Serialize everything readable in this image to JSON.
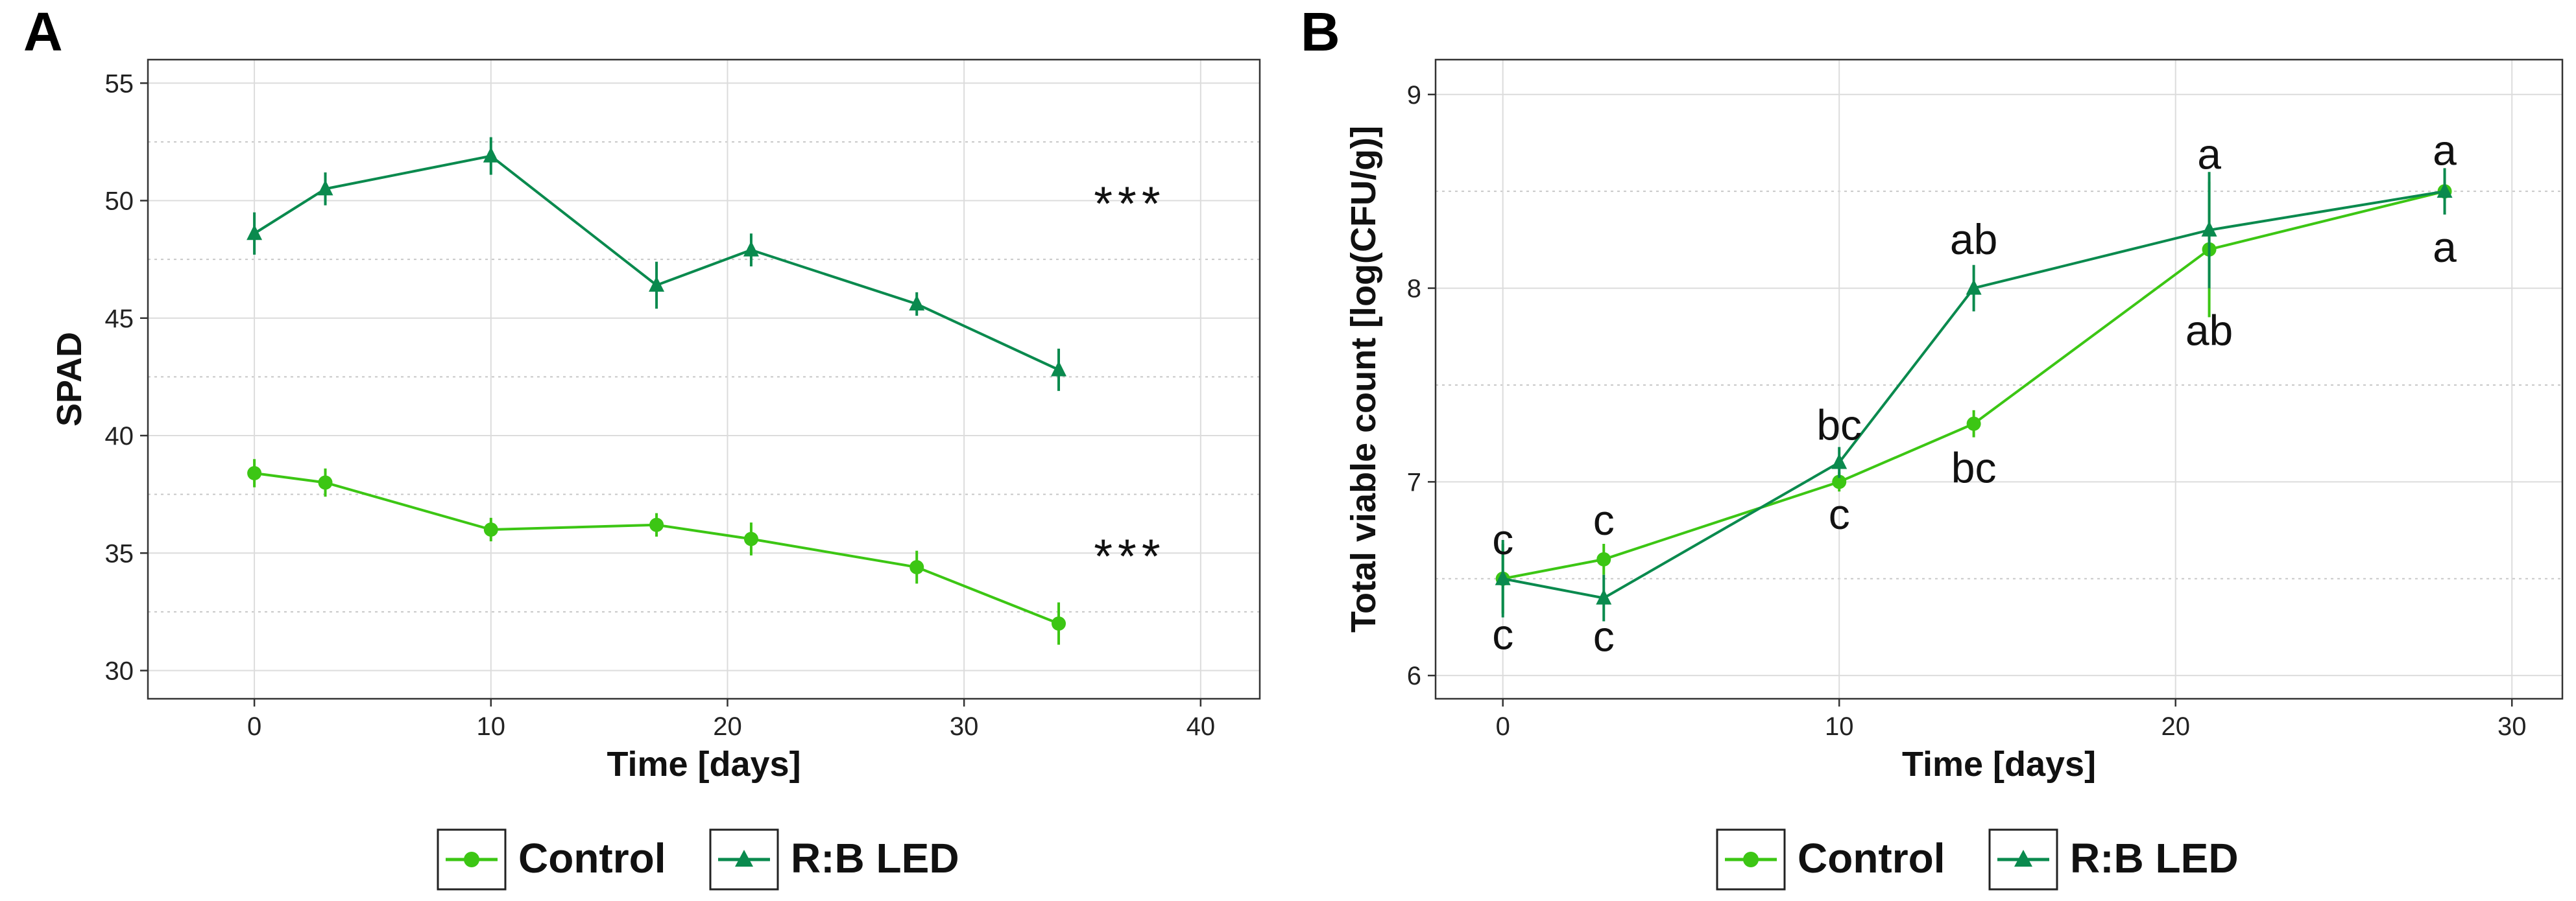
{
  "panels": {
    "a": {
      "letter": "A"
    },
    "b": {
      "letter": "B"
    }
  },
  "colors": {
    "control": "#3cc614",
    "led": "#0a8a4e",
    "grid": "#dcdcdc",
    "minor_grid": "#c8c8c8",
    "axis": "#333333"
  },
  "chart_data": [
    {
      "type": "line",
      "panel": "A",
      "xlabel": "Time [days]",
      "ylabel": "SPAD",
      "xlim": [
        -4.5,
        42.5
      ],
      "ylim": [
        28.8,
        56.0
      ],
      "xticks": [
        0,
        10,
        20,
        30,
        40
      ],
      "yticks": [
        30,
        35,
        40,
        45,
        50,
        55
      ],
      "minor_y": [
        32.5,
        37.5,
        42.5,
        47.5,
        52.5
      ],
      "grid": true,
      "legend_position": "bottom",
      "series": [
        {
          "name": "Control",
          "marker": "circle",
          "x": [
            0,
            3,
            10,
            17,
            21,
            28,
            34
          ],
          "y": [
            38.4,
            38.0,
            36.0,
            36.2,
            35.6,
            34.4,
            32.0
          ],
          "err": [
            0.6,
            0.6,
            0.5,
            0.5,
            0.7,
            0.7,
            0.9
          ]
        },
        {
          "name": "R:B LED",
          "marker": "triangle",
          "x": [
            0,
            3,
            10,
            17,
            21,
            28,
            34
          ],
          "y": [
            48.6,
            50.5,
            51.9,
            46.4,
            47.9,
            45.6,
            42.8
          ],
          "err": [
            0.9,
            0.7,
            0.8,
            1.0,
            0.7,
            0.5,
            0.9
          ]
        }
      ],
      "annotations": [
        {
          "text": "***",
          "x": 37,
          "y": 50
        },
        {
          "text": "***",
          "x": 37,
          "y": 35
        }
      ]
    },
    {
      "type": "line",
      "panel": "B",
      "xlabel": "Time [days]",
      "ylabel": "Total viable count [log(CFU/g)]",
      "xlim": [
        -2.0,
        31.5
      ],
      "ylim": [
        5.88,
        9.18
      ],
      "xticks": [
        0,
        10,
        20,
        30
      ],
      "yticks": [
        6,
        7,
        8,
        9
      ],
      "minor_y": [
        6.5,
        7.5,
        8.5
      ],
      "grid": true,
      "legend_position": "bottom",
      "series": [
        {
          "name": "Control",
          "marker": "circle",
          "x": [
            0,
            3,
            10,
            14,
            21,
            28
          ],
          "y": [
            6.5,
            6.6,
            7.0,
            7.3,
            8.2,
            8.5
          ],
          "err": [
            0.18,
            0.08,
            0.05,
            0.07,
            0.35,
            0.05
          ]
        },
        {
          "name": "R:B LED",
          "marker": "triangle",
          "x": [
            0,
            3,
            10,
            14,
            21,
            28
          ],
          "y": [
            6.5,
            6.4,
            7.1,
            8.0,
            8.3,
            8.5
          ],
          "err": [
            0.2,
            0.12,
            0.08,
            0.12,
            0.3,
            0.12
          ]
        }
      ],
      "annotations": [
        {
          "text": "c",
          "x": 0,
          "y": 6.7
        },
        {
          "text": "c",
          "x": 0,
          "y": 6.21
        },
        {
          "text": "c",
          "x": 3,
          "y": 6.8
        },
        {
          "text": "c",
          "x": 3,
          "y": 6.2
        },
        {
          "text": "bc",
          "x": 10,
          "y": 7.29
        },
        {
          "text": "c",
          "x": 10,
          "y": 6.83
        },
        {
          "text": "ab",
          "x": 14,
          "y": 8.25
        },
        {
          "text": "bc",
          "x": 14,
          "y": 7.07
        },
        {
          "text": "a",
          "x": 21,
          "y": 8.69
        },
        {
          "text": "ab",
          "x": 21,
          "y": 7.78
        },
        {
          "text": "a",
          "x": 28,
          "y": 8.71
        },
        {
          "text": "a",
          "x": 28,
          "y": 8.21
        }
      ]
    }
  ]
}
